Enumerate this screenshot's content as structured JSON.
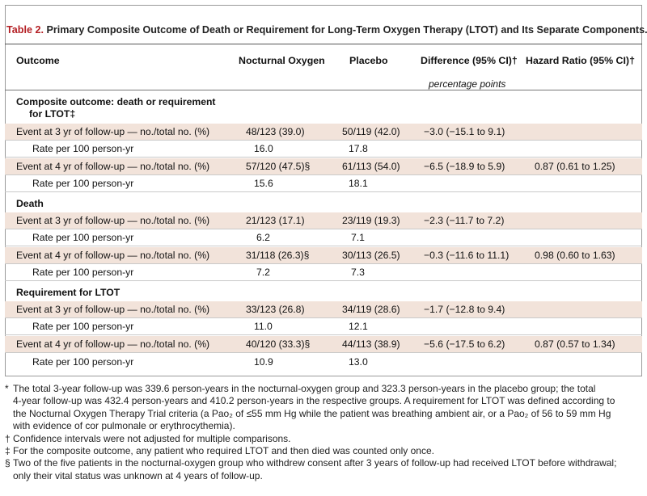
{
  "table": {
    "label": "Table 2.",
    "title": "Primary Composite Outcome of Death or Requirement for Long-Term Oxygen Therapy (LTOT) and Its Separate Components.*",
    "columns": [
      "Outcome",
      "Nocturnal Oxygen",
      "Placebo",
      "Difference (95% CI)†",
      "Hazard Ratio (95% CI)†"
    ],
    "difference_unit": "percentage points",
    "sections": [
      {
        "heading": "Composite outcome: death or requirement",
        "heading2": "for LTOT‡",
        "rows": [
          [
            "Event at 3 yr of follow-up — no./total no. (%)",
            "48/123 (39.0)",
            "50/119 (42.0)",
            "−3.0 (−15.1 to 9.1)",
            ""
          ],
          [
            "Rate per 100 person-yr",
            "16.0",
            "17.8",
            "",
            ""
          ],
          [
            "Event at 4 yr of follow-up — no./total no. (%)",
            "57/120 (47.5)§",
            "61/113 (54.0)",
            "−6.5 (−18.9 to 5.9)",
            "0.87 (0.61 to 1.25)"
          ],
          [
            "Rate per 100 person-yr",
            "15.6",
            "18.1",
            "",
            ""
          ]
        ]
      },
      {
        "heading": "Death",
        "rows": [
          [
            "Event at 3 yr of follow-up — no./total no. (%)",
            "21/123 (17.1)",
            "23/119 (19.3)",
            "−2.3 (−11.7 to 7.2)",
            ""
          ],
          [
            "Rate per 100 person-yr",
            "6.2",
            "7.1",
            "",
            ""
          ],
          [
            "Event at 4 yr of follow-up — no./total no. (%)",
            "31/118 (26.3)§",
            "30/113 (26.5)",
            "−0.3 (−11.6 to 11.1)",
            "0.98 (0.60 to 1.63)"
          ],
          [
            "Rate per 100 person-yr",
            "7.2",
            "7.3",
            "",
            ""
          ]
        ]
      },
      {
        "heading": "Requirement for LTOT",
        "rows": [
          [
            "Event at 3 yr of follow-up — no./total no. (%)",
            "33/123 (26.8)",
            "34/119 (28.6)",
            "−1.7 (−12.8 to 9.4)",
            ""
          ],
          [
            "Rate per 100 person-yr",
            "11.0",
            "12.1",
            "",
            ""
          ],
          [
            "Event at 4 yr of follow-up — no./total no. (%)",
            "40/120 (33.3)§",
            "44/113 (38.9)",
            "−5.6 (−17.5 to 6.2)",
            "0.87 (0.57 to 1.34)"
          ],
          [
            "Rate per 100 person-yr",
            "10.9",
            "13.0",
            "",
            ""
          ]
        ]
      }
    ]
  },
  "footnotes": [
    {
      "mark": "*",
      "lines": [
        "The total 3-year follow-up was 339.6 person-years in the nocturnal-oxygen group and 323.3 person-years in the placebo group; the total",
        "4-year follow-up was 432.4 person-years and 410.2 person-years in the respective groups. A requirement for LTOT was defined according to",
        "the Nocturnal Oxygen Therapy Trial criteria (a Pao₂ of ≤55 mm Hg while the patient was breathing ambient air, or a Pao₂ of 56 to 59 mm Hg",
        "with evidence of cor pulmonale or erythrocythemia)."
      ]
    },
    {
      "mark": "†",
      "lines": [
        "Confidence intervals were not adjusted for multiple comparisons."
      ]
    },
    {
      "mark": "‡",
      "lines": [
        "For the composite outcome, any patient who required LTOT and then died was counted only once."
      ]
    },
    {
      "mark": "§",
      "lines": [
        "Two of the five patients in the nocturnal-oxygen group who withdrew consent after 3 years of follow-up had received LTOT before withdrawal;",
        "only their vital status was unknown at 4 years of follow-up."
      ]
    }
  ],
  "colors": {
    "label": "#b41f24",
    "shade": "#f2e3da"
  }
}
